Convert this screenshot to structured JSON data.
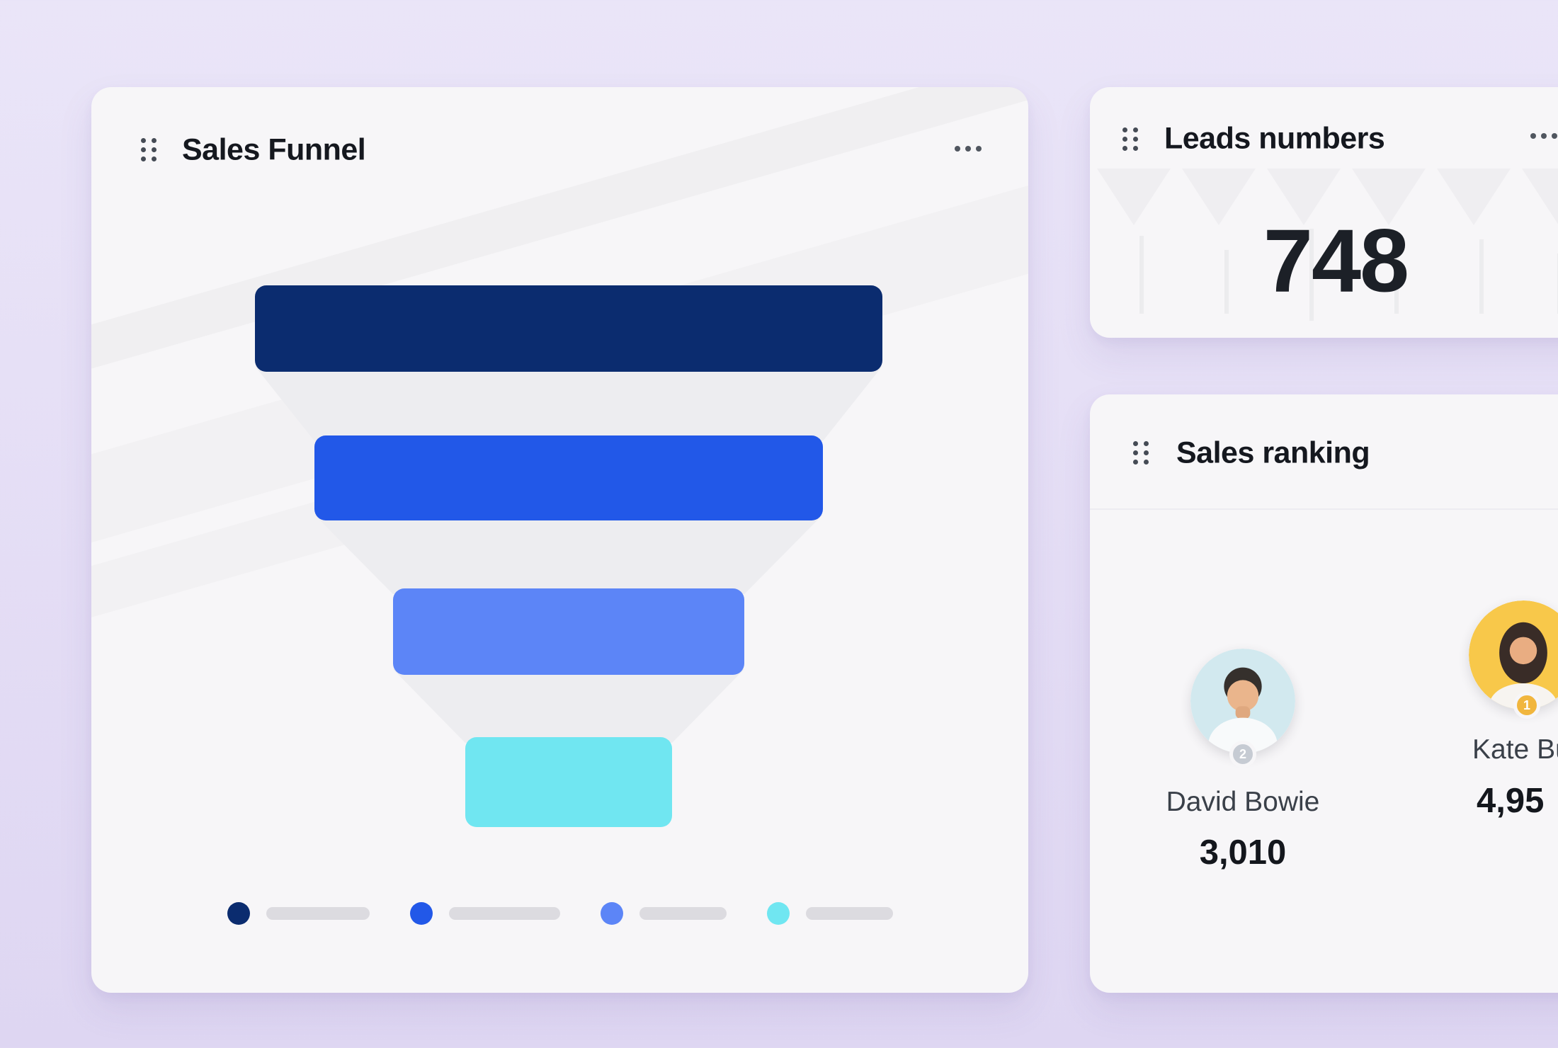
{
  "page": {
    "background_top": "#eae5f8",
    "background_bottom": "#ded6f2"
  },
  "icons": {
    "drag_handle": "drag-handle-icon",
    "more_options": "ellipsis-icon"
  },
  "funnel_card": {
    "title": "Sales Funnel"
  },
  "leads_card": {
    "title": "Leads numbers",
    "value": "748"
  },
  "ranking_card": {
    "title": "Sales ranking",
    "people": [
      {
        "name": "David Bowie",
        "value": "3,010",
        "rank": "2",
        "avatar": "man-photo-avatar",
        "avatar_bg": "#d2e9ef",
        "badge_color": "#c6cbd3"
      },
      {
        "name": "Kate Bu",
        "value": "4,95",
        "rank": "1",
        "avatar": "woman-photo-avatar",
        "avatar_bg": "#f8c84a",
        "badge_color": "#f1b63e"
      }
    ]
  },
  "chart_data": {
    "type": "funnel",
    "title": "Sales Funnel",
    "orientation": "vertical",
    "stages": [
      {
        "label": "",
        "relative_width_pct": 100,
        "color": "#0b2c6f"
      },
      {
        "label": "",
        "relative_width_pct": 81,
        "color": "#2258e8"
      },
      {
        "label": "",
        "relative_width_pct": 56,
        "color": "#5c85f7"
      },
      {
        "label": "",
        "relative_width_pct": 33,
        "color": "#70e6f1"
      }
    ],
    "connector_color": "#ededf0",
    "legend": {
      "position": "bottom",
      "labels_visible": false,
      "pill_color": "#dcdbe0",
      "pill_widths": [
        146,
        157,
        123,
        123
      ]
    }
  }
}
